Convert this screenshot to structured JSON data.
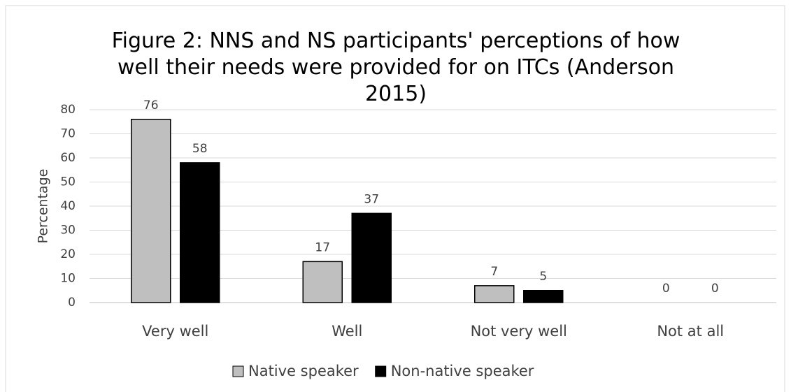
{
  "chart_data": {
    "type": "bar",
    "title": "Figure 2: NNS and NS participants' perceptions of how well their needs were provided for on ITCs (Anderson 2015)",
    "y_label": "Percentage",
    "categories": [
      "Very well",
      "Well",
      "Not very well",
      "Not at all"
    ],
    "series": [
      {
        "name": "Native speaker",
        "color": "#bfbfbf",
        "values": [
          76,
          17,
          7,
          0
        ]
      },
      {
        "name": "Non-native speaker",
        "color": "#000000",
        "values": [
          58,
          37,
          5,
          0
        ]
      }
    ],
    "ylim": [
      0,
      80
    ],
    "yticks": [
      0,
      10,
      20,
      30,
      40,
      50,
      60,
      70,
      80
    ],
    "grid": true,
    "legend": "bottom"
  }
}
